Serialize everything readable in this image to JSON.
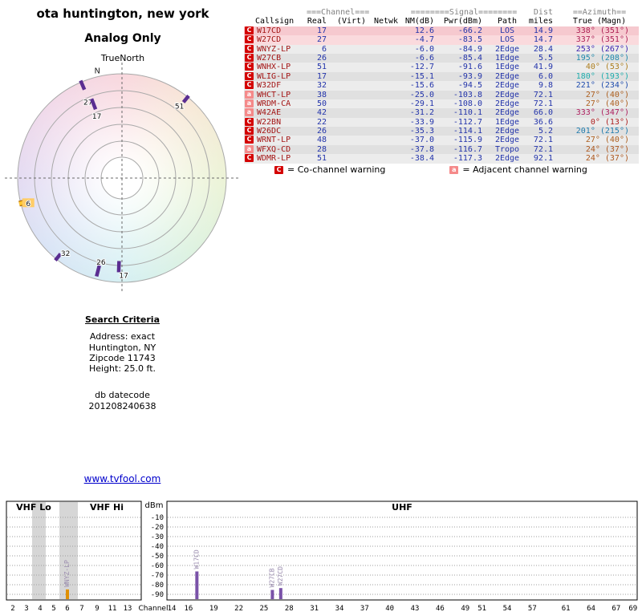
{
  "header": {
    "title": "ota huntington, new york",
    "subtitle": "Analog Only",
    "orientation_label": "TrueNorth"
  },
  "polar": {
    "compass_n": "N",
    "markers": [
      {
        "channel": "27",
        "az": 337,
        "r": 0.975,
        "label_az": 336,
        "label_r": 0.8,
        "color": "#5a2d91"
      },
      {
        "channel": "17",
        "az": 339,
        "r": 0.76,
        "label_az": 338,
        "label_r": 0.645,
        "color": "#5a2d91"
      },
      {
        "channel": "51",
        "az": 39,
        "r": 0.99,
        "label_az": 38.5,
        "label_r": 0.885,
        "color": "#5a2d91"
      },
      {
        "channel": "6",
        "az": 256,
        "r": 0.985,
        "label_az": 255,
        "label_r": 0.93,
        "color": "#ffc733",
        "outline": "#b36b00",
        "label_bg": "#ffcc66"
      },
      {
        "channel": "32",
        "az": 219,
        "r": 0.99,
        "label_az": 217,
        "label_r": 0.9,
        "color": "#5a2d91"
      },
      {
        "channel": "26",
        "az": 194.5,
        "r": 0.92,
        "label_az": 194,
        "label_r": 0.83,
        "color": "#5a2d91"
      },
      {
        "channel": "17",
        "az": 182,
        "r": 0.85,
        "label_az": 179,
        "label_r": 0.93,
        "color": "#5a2d91"
      }
    ]
  },
  "table": {
    "group_headers": {
      "channel": "===Channel===",
      "signal": "========Signal========",
      "dist": "Dist",
      "azimuth": "==Azimuth=="
    },
    "columns": [
      "Callsign",
      "Real",
      "(Virt)",
      "Netwk",
      "NM(dB)",
      "Pwr(dBm)",
      "Path",
      "miles",
      "True (Magn)"
    ],
    "rows": [
      {
        "callsign": "W17CD",
        "real": "17",
        "nm": "12.6",
        "pwr": "-66.2",
        "path": "LOS",
        "miles": "14.9",
        "az_true": "338",
        "az_magn": "351",
        "warn": "C",
        "bg": "#f6c9cf",
        "az_color": "#ad1f53"
      },
      {
        "callsign": "W27CD",
        "real": "27",
        "nm": "-4.7",
        "pwr": "-83.5",
        "path": "LOS",
        "miles": "14.7",
        "az_true": "337",
        "az_magn": "351",
        "warn": "C",
        "bg": "#fadadd",
        "az_color": "#ad1f55"
      },
      {
        "callsign": "WNYZ-LP",
        "real": "6",
        "nm": "-6.0",
        "pwr": "-84.9",
        "path": "2Edge",
        "miles": "28.4",
        "az_true": "253",
        "az_magn": "267",
        "warn": "C",
        "bg": "#ececec",
        "az_color": "#3d1fad"
      },
      {
        "callsign": "W27CB",
        "real": "26",
        "nm": "-6.6",
        "pwr": "-85.4",
        "path": "1Edge",
        "miles": "5.5",
        "az_true": "195",
        "az_magn": "208",
        "warn": "C",
        "bg": "#e0e0e0",
        "az_color": "#1f8aad"
      },
      {
        "callsign": "WNHX-LP",
        "real": "51",
        "nm": "-12.7",
        "pwr": "-91.6",
        "path": "1Edge",
        "miles": "41.9",
        "az_true": "40",
        "az_magn": "53",
        "warn": "C",
        "bg": "#ececec",
        "az_color": "#ad7e1f"
      },
      {
        "callsign": "WLIG-LP",
        "real": "17",
        "nm": "-15.1",
        "pwr": "-93.9",
        "path": "2Edge",
        "miles": "6.0",
        "az_true": "180",
        "az_magn": "193",
        "warn": "C",
        "bg": "#e0e0e0",
        "az_color": "#1fadad"
      },
      {
        "callsign": "W32DF",
        "real": "32",
        "nm": "-15.6",
        "pwr": "-94.5",
        "path": "2Edge",
        "miles": "9.8",
        "az_true": "221",
        "az_magn": "234",
        "warn": "C",
        "bg": "#ececec",
        "az_color": "#1f4cad"
      },
      {
        "callsign": "WHCT-LP",
        "real": "38",
        "nm": "-25.0",
        "pwr": "-103.8",
        "path": "2Edge",
        "miles": "72.1",
        "az_true": "27",
        "az_magn": "40",
        "warn": "a",
        "bg": "#e0e0e0",
        "az_color": "#ad5f1f"
      },
      {
        "callsign": "WRDM-CA",
        "real": "50",
        "nm": "-29.1",
        "pwr": "-108.0",
        "path": "2Edge",
        "miles": "72.1",
        "az_true": "27",
        "az_magn": "40",
        "warn": "a",
        "bg": "#ececec",
        "az_color": "#ad5f1f"
      },
      {
        "callsign": "W42AE",
        "real": "42",
        "nm": "-31.2",
        "pwr": "-110.1",
        "path": "2Edge",
        "miles": "66.0",
        "az_true": "333",
        "az_magn": "347",
        "warn": "a",
        "bg": "#e0e0e0",
        "az_color": "#ad1f5f"
      },
      {
        "callsign": "W22BN",
        "real": "22",
        "nm": "-33.9",
        "pwr": "-112.7",
        "path": "1Edge",
        "miles": "36.6",
        "az_true": "0",
        "az_magn": "13",
        "warn": "C",
        "bg": "#ececec",
        "az_color": "#ad1f1f"
      },
      {
        "callsign": "W26DC",
        "real": "26",
        "nm": "-35.3",
        "pwr": "-114.1",
        "path": "2Edge",
        "miles": "5.2",
        "az_true": "201",
        "az_magn": "215",
        "warn": "C",
        "bg": "#e0e0e0",
        "az_color": "#1f7bad"
      },
      {
        "callsign": "WRNT-LP",
        "real": "48",
        "nm": "-37.0",
        "pwr": "-115.9",
        "path": "2Edge",
        "miles": "72.1",
        "az_true": "27",
        "az_magn": "40",
        "warn": "C",
        "bg": "#ececec",
        "az_color": "#ad5f1f"
      },
      {
        "callsign": "WFXQ-CD",
        "real": "28",
        "nm": "-37.8",
        "pwr": "-116.7",
        "path": "Tropo",
        "miles": "72.1",
        "az_true": "24",
        "az_magn": "37",
        "warn": "a",
        "bg": "#e0e0e0",
        "az_color": "#ad581f"
      },
      {
        "callsign": "WDMR-LP",
        "real": "51",
        "nm": "-38.4",
        "pwr": "-117.3",
        "path": "2Edge",
        "miles": "92.1",
        "az_true": "24",
        "az_magn": "37",
        "warn": "C",
        "bg": "#ececec",
        "az_color": "#ad581f"
      }
    ]
  },
  "legend": {
    "co": {
      "symbol": "C",
      "label": "= Co-channel warning",
      "color": "#d40000"
    },
    "adj": {
      "symbol": "a",
      "label": "= Adjacent channel warning",
      "color": "#f58a8a"
    }
  },
  "search": {
    "title": "Search Criteria",
    "lines": [
      "Address: exact",
      "Huntington, NY",
      "Zipcode 11743",
      "Height: 25.0 ft."
    ],
    "datecode_label": "db datecode",
    "datecode": "201208240638"
  },
  "link": {
    "text": "www.tvfool.com"
  },
  "chart_data": [
    {
      "type": "scatter",
      "variant": "polar-azimuth-radar",
      "title": "ota huntington, new york",
      "subtitle": "Analog Only",
      "orientation": "TrueNorth",
      "points": [
        {
          "callsign": "W17CD",
          "channel": 17,
          "azimuth_true": 338,
          "distance_miles": 14.9
        },
        {
          "callsign": "W27CD",
          "channel": 27,
          "azimuth_true": 337,
          "distance_miles": 14.7
        },
        {
          "callsign": "WNYZ-LP",
          "channel": 6,
          "azimuth_true": 253,
          "distance_miles": 28.4
        },
        {
          "callsign": "W27CB",
          "channel": 26,
          "azimuth_true": 195,
          "distance_miles": 5.5
        },
        {
          "callsign": "WNHX-LP",
          "channel": 51,
          "azimuth_true": 40,
          "distance_miles": 41.9
        },
        {
          "callsign": "WLIG-LP",
          "channel": 17,
          "azimuth_true": 180,
          "distance_miles": 6.0
        },
        {
          "callsign": "W32DF",
          "channel": 32,
          "azimuth_true": 221,
          "distance_miles": 9.8
        }
      ]
    },
    {
      "type": "bar",
      "xlabel": "Channel",
      "ylabel": "dBm",
      "ylim": [
        -90,
        -10
      ],
      "yticks": [
        -10,
        -20,
        -30,
        -40,
        -50,
        -60,
        -70,
        -80,
        -90
      ],
      "band_labels": [
        "VHF Lo",
        "VHF Hi",
        "UHF"
      ],
      "vhf_ticks": [
        2,
        3,
        4,
        5,
        6,
        7,
        9,
        11,
        13
      ],
      "uhf_ticks": [
        14,
        16,
        19,
        22,
        25,
        28,
        31,
        34,
        37,
        40,
        43,
        46,
        49,
        51,
        54,
        57,
        61,
        64,
        67,
        69
      ],
      "bars": [
        {
          "callsign": "WNYZ-LP",
          "channel": 6,
          "dbm": -84.9,
          "color": "#e09000"
        },
        {
          "callsign": "W17CD",
          "channel": 17,
          "dbm": -66.2,
          "color": "#7a52a8"
        },
        {
          "callsign": "W27CB",
          "channel": 26,
          "dbm": -85.4,
          "color": "#7a52a8"
        },
        {
          "callsign": "W27CD",
          "channel": 27,
          "dbm": -83.5,
          "color": "#7a52a8"
        }
      ]
    }
  ]
}
